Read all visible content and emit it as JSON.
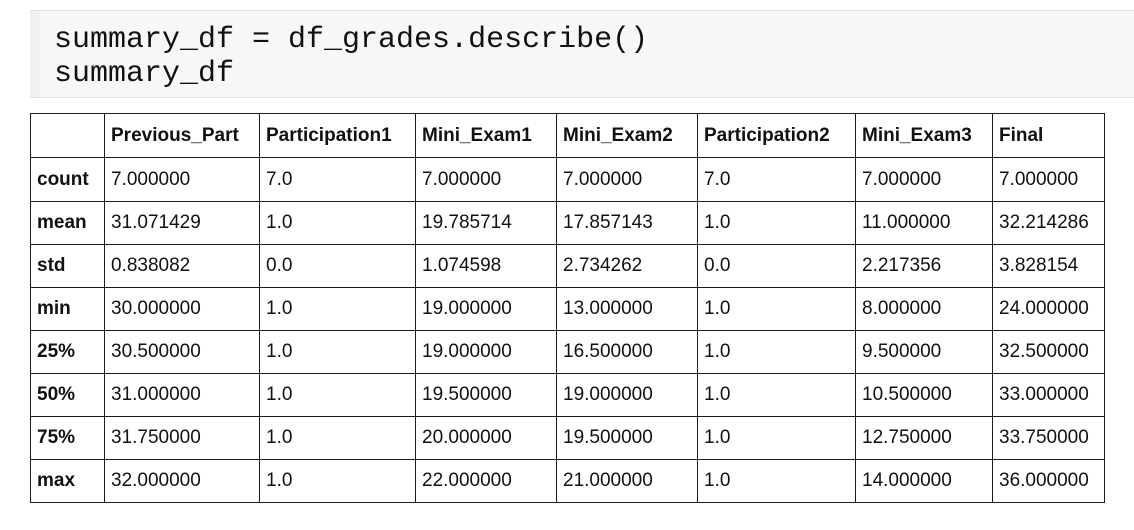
{
  "code_cell": {
    "lines": [
      "summary_df = df_grades.describe()",
      "summary_df"
    ]
  },
  "dataframe": {
    "index_header": "",
    "columns": [
      "Previous_Part",
      "Participation1",
      "Mini_Exam1",
      "Mini_Exam2",
      "Participation2",
      "Mini_Exam3",
      "Final"
    ],
    "rows": [
      {
        "label": "count",
        "values": [
          "7.000000",
          "7.0",
          "7.000000",
          "7.000000",
          "7.0",
          "7.000000",
          "7.000000"
        ]
      },
      {
        "label": "mean",
        "values": [
          "31.071429",
          "1.0",
          "19.785714",
          "17.857143",
          "1.0",
          "11.000000",
          "32.214286"
        ]
      },
      {
        "label": "std",
        "values": [
          "0.838082",
          "0.0",
          "1.074598",
          "2.734262",
          "0.0",
          "2.217356",
          "3.828154"
        ]
      },
      {
        "label": "min",
        "values": [
          "30.000000",
          "1.0",
          "19.000000",
          "13.000000",
          "1.0",
          "8.000000",
          "24.000000"
        ]
      },
      {
        "label": "25%",
        "values": [
          "30.500000",
          "1.0",
          "19.000000",
          "16.500000",
          "1.0",
          "9.500000",
          "32.500000"
        ]
      },
      {
        "label": "50%",
        "values": [
          "31.000000",
          "1.0",
          "19.500000",
          "19.000000",
          "1.0",
          "10.500000",
          "33.000000"
        ]
      },
      {
        "label": "75%",
        "values": [
          "31.750000",
          "1.0",
          "20.000000",
          "19.500000",
          "1.0",
          "12.750000",
          "33.750000"
        ]
      },
      {
        "label": "max",
        "values": [
          "32.000000",
          "1.0",
          "22.000000",
          "21.000000",
          "1.0",
          "14.000000",
          "36.000000"
        ]
      }
    ]
  }
}
